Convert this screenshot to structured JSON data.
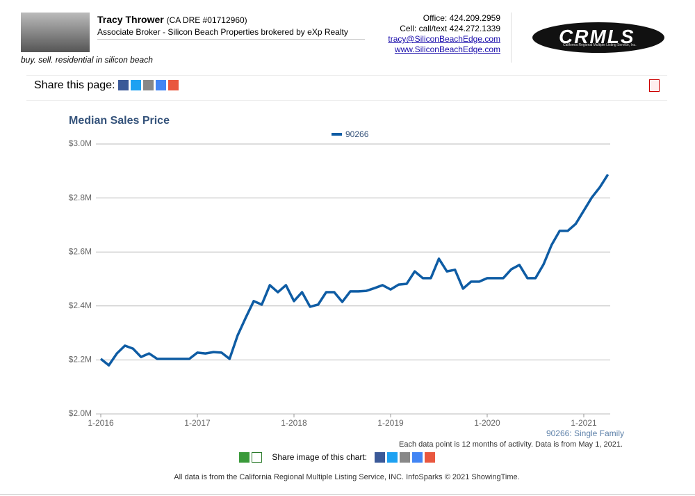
{
  "header": {
    "name": "Tracy Thrower",
    "license": "(CA DRE #01712960)",
    "title": "Associate Broker - Silicon Beach Properties brokered by eXp Realty",
    "tagline": "buy. sell. residential in silicon beach",
    "office": "Office: 424.209.2959",
    "cell": "Cell: call/text 424.272.1339",
    "email": "tracy@SiliconBeachEdge.com",
    "website": "www.SiliconBeachEdge.com",
    "logo": "CRMLS",
    "logo_sub": "California Regional Multiple Listing Service, Inc."
  },
  "share": {
    "label": "Share this page:"
  },
  "chart_data": {
    "type": "line",
    "title": "Median Sales Price",
    "categories": [
      "1-2016",
      null,
      null,
      null,
      null,
      null,
      null,
      null,
      null,
      null,
      null,
      null,
      "1-2017",
      null,
      null,
      null,
      null,
      null,
      null,
      null,
      null,
      null,
      null,
      null,
      "1-2018",
      null,
      null,
      null,
      null,
      null,
      null,
      null,
      null,
      null,
      null,
      null,
      "1-2019",
      null,
      null,
      null,
      null,
      null,
      null,
      null,
      null,
      null,
      null,
      null,
      "1-2020",
      null,
      null,
      null,
      null,
      null,
      null,
      null,
      null,
      null,
      null,
      null,
      "1-2021",
      null,
      null,
      null
    ],
    "series": [
      {
        "name": "90266",
        "color": "#0e5ca4",
        "values": [
          2.204,
          2.18,
          2.224,
          2.253,
          2.242,
          2.211,
          2.224,
          2.204,
          2.204,
          2.204,
          2.204,
          2.204,
          2.227,
          2.224,
          2.229,
          2.227,
          2.204,
          2.291,
          2.356,
          2.418,
          2.405,
          2.477,
          2.451,
          2.477,
          2.418,
          2.451,
          2.397,
          2.405,
          2.451,
          2.451,
          2.415,
          2.454,
          2.454,
          2.456,
          2.466,
          2.477,
          2.461,
          2.479,
          2.482,
          2.528,
          2.503,
          2.503,
          2.575,
          2.528,
          2.534,
          2.464,
          2.49,
          2.49,
          2.503,
          2.503,
          2.503,
          2.536,
          2.552,
          2.503,
          2.503,
          2.554,
          2.626,
          2.678,
          2.678,
          2.704,
          2.753,
          2.802,
          2.84,
          2.887
        ]
      }
    ],
    "ylim": [
      2,
      3
    ],
    "yticks": [
      {
        "value": 2,
        "label": "$2.0M"
      },
      {
        "value": 2.2,
        "label": "$2.2M"
      },
      {
        "value": 2.4,
        "label": "$2.4M"
      },
      {
        "value": 2.6,
        "label": "$2.6M"
      },
      {
        "value": 2.8,
        "label": "$2.8M"
      },
      {
        "value": 3,
        "label": "$3.0M"
      }
    ],
    "grid": true,
    "legend": "top",
    "note": "90266: Single Family"
  },
  "footer": {
    "data_note": "Each data point is 12 months of activity. Data is from May 1, 2021.",
    "share_image": "Share image of this chart:",
    "source": "All data is from the California Regional Multiple Listing Service, INC. InfoSparks © 2021 ShowingTime."
  }
}
